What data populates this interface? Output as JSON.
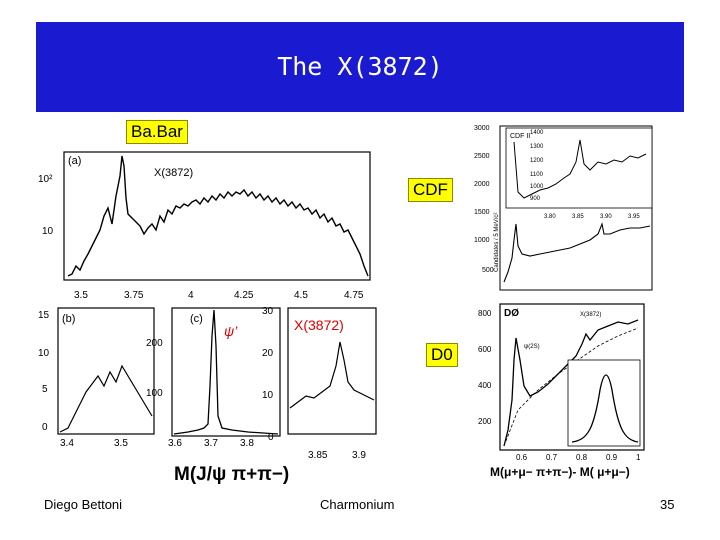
{
  "slide": {
    "title": "The X(3872)",
    "labels": {
      "babar": "Ba.Bar",
      "cdf": "CDF",
      "d0": "D0"
    },
    "footer": {
      "author": "Diego Bettoni",
      "topic": "Charmonium",
      "page": "35"
    }
  },
  "babar_panel": {
    "top_plot": {
      "tag": "(a)",
      "peak_label": "X(3872)",
      "y_ticks": [
        "10²",
        "10"
      ],
      "x_ticks": [
        "3.5",
        "3.75",
        "4",
        "4.25",
        "4.5",
        "4.75"
      ]
    },
    "lower_plots": {
      "tag_b": "(b)",
      "tag_c": "(c)",
      "psi_label": "ψ’",
      "x_label": "X(3872)",
      "b_y_ticks": [
        "15",
        "10",
        "5",
        "0"
      ],
      "c_y_ticks": [
        "200",
        "100"
      ],
      "d_y_ticks": [
        "30",
        "20",
        "10",
        "0"
      ],
      "b_x_ticks": [
        "3.4",
        "3.5"
      ],
      "c_x_ticks": [
        "3.6",
        "3.7",
        "3.8"
      ],
      "d_x_ticks": [
        "3.85",
        "3.9"
      ],
      "axis_title": "M(J/ψ π+π−)"
    }
  },
  "cdf_panel": {
    "inset_tag": "CDF II",
    "y_ticks": [
      "3000",
      "2500",
      "2000",
      "1500",
      "1000",
      "500"
    ],
    "inset_y_ticks": [
      "1400",
      "1300",
      "1200",
      "1100",
      "1000",
      "900"
    ],
    "inset_x_ticks": [
      "3.80",
      "3.85",
      "3.90",
      "3.95"
    ],
    "y_label": "Candidates / 5 MeV/c²"
  },
  "d0_panel": {
    "tag": "DØ",
    "psi_label": "ψ(2S)",
    "x_label": "X(3872)",
    "y_ticks": [
      "800",
      "600",
      "400",
      "200"
    ],
    "x_ticks": [
      "0.6",
      "0.7",
      "0.8",
      "0.9",
      "1"
    ],
    "axis_title": "M(μ+μ− π+π−)- M( μ+μ−)"
  },
  "colors": {
    "title_bar": "#1a1ad0",
    "label_bg": "#ffff00",
    "x_label_red": "#e00000"
  }
}
